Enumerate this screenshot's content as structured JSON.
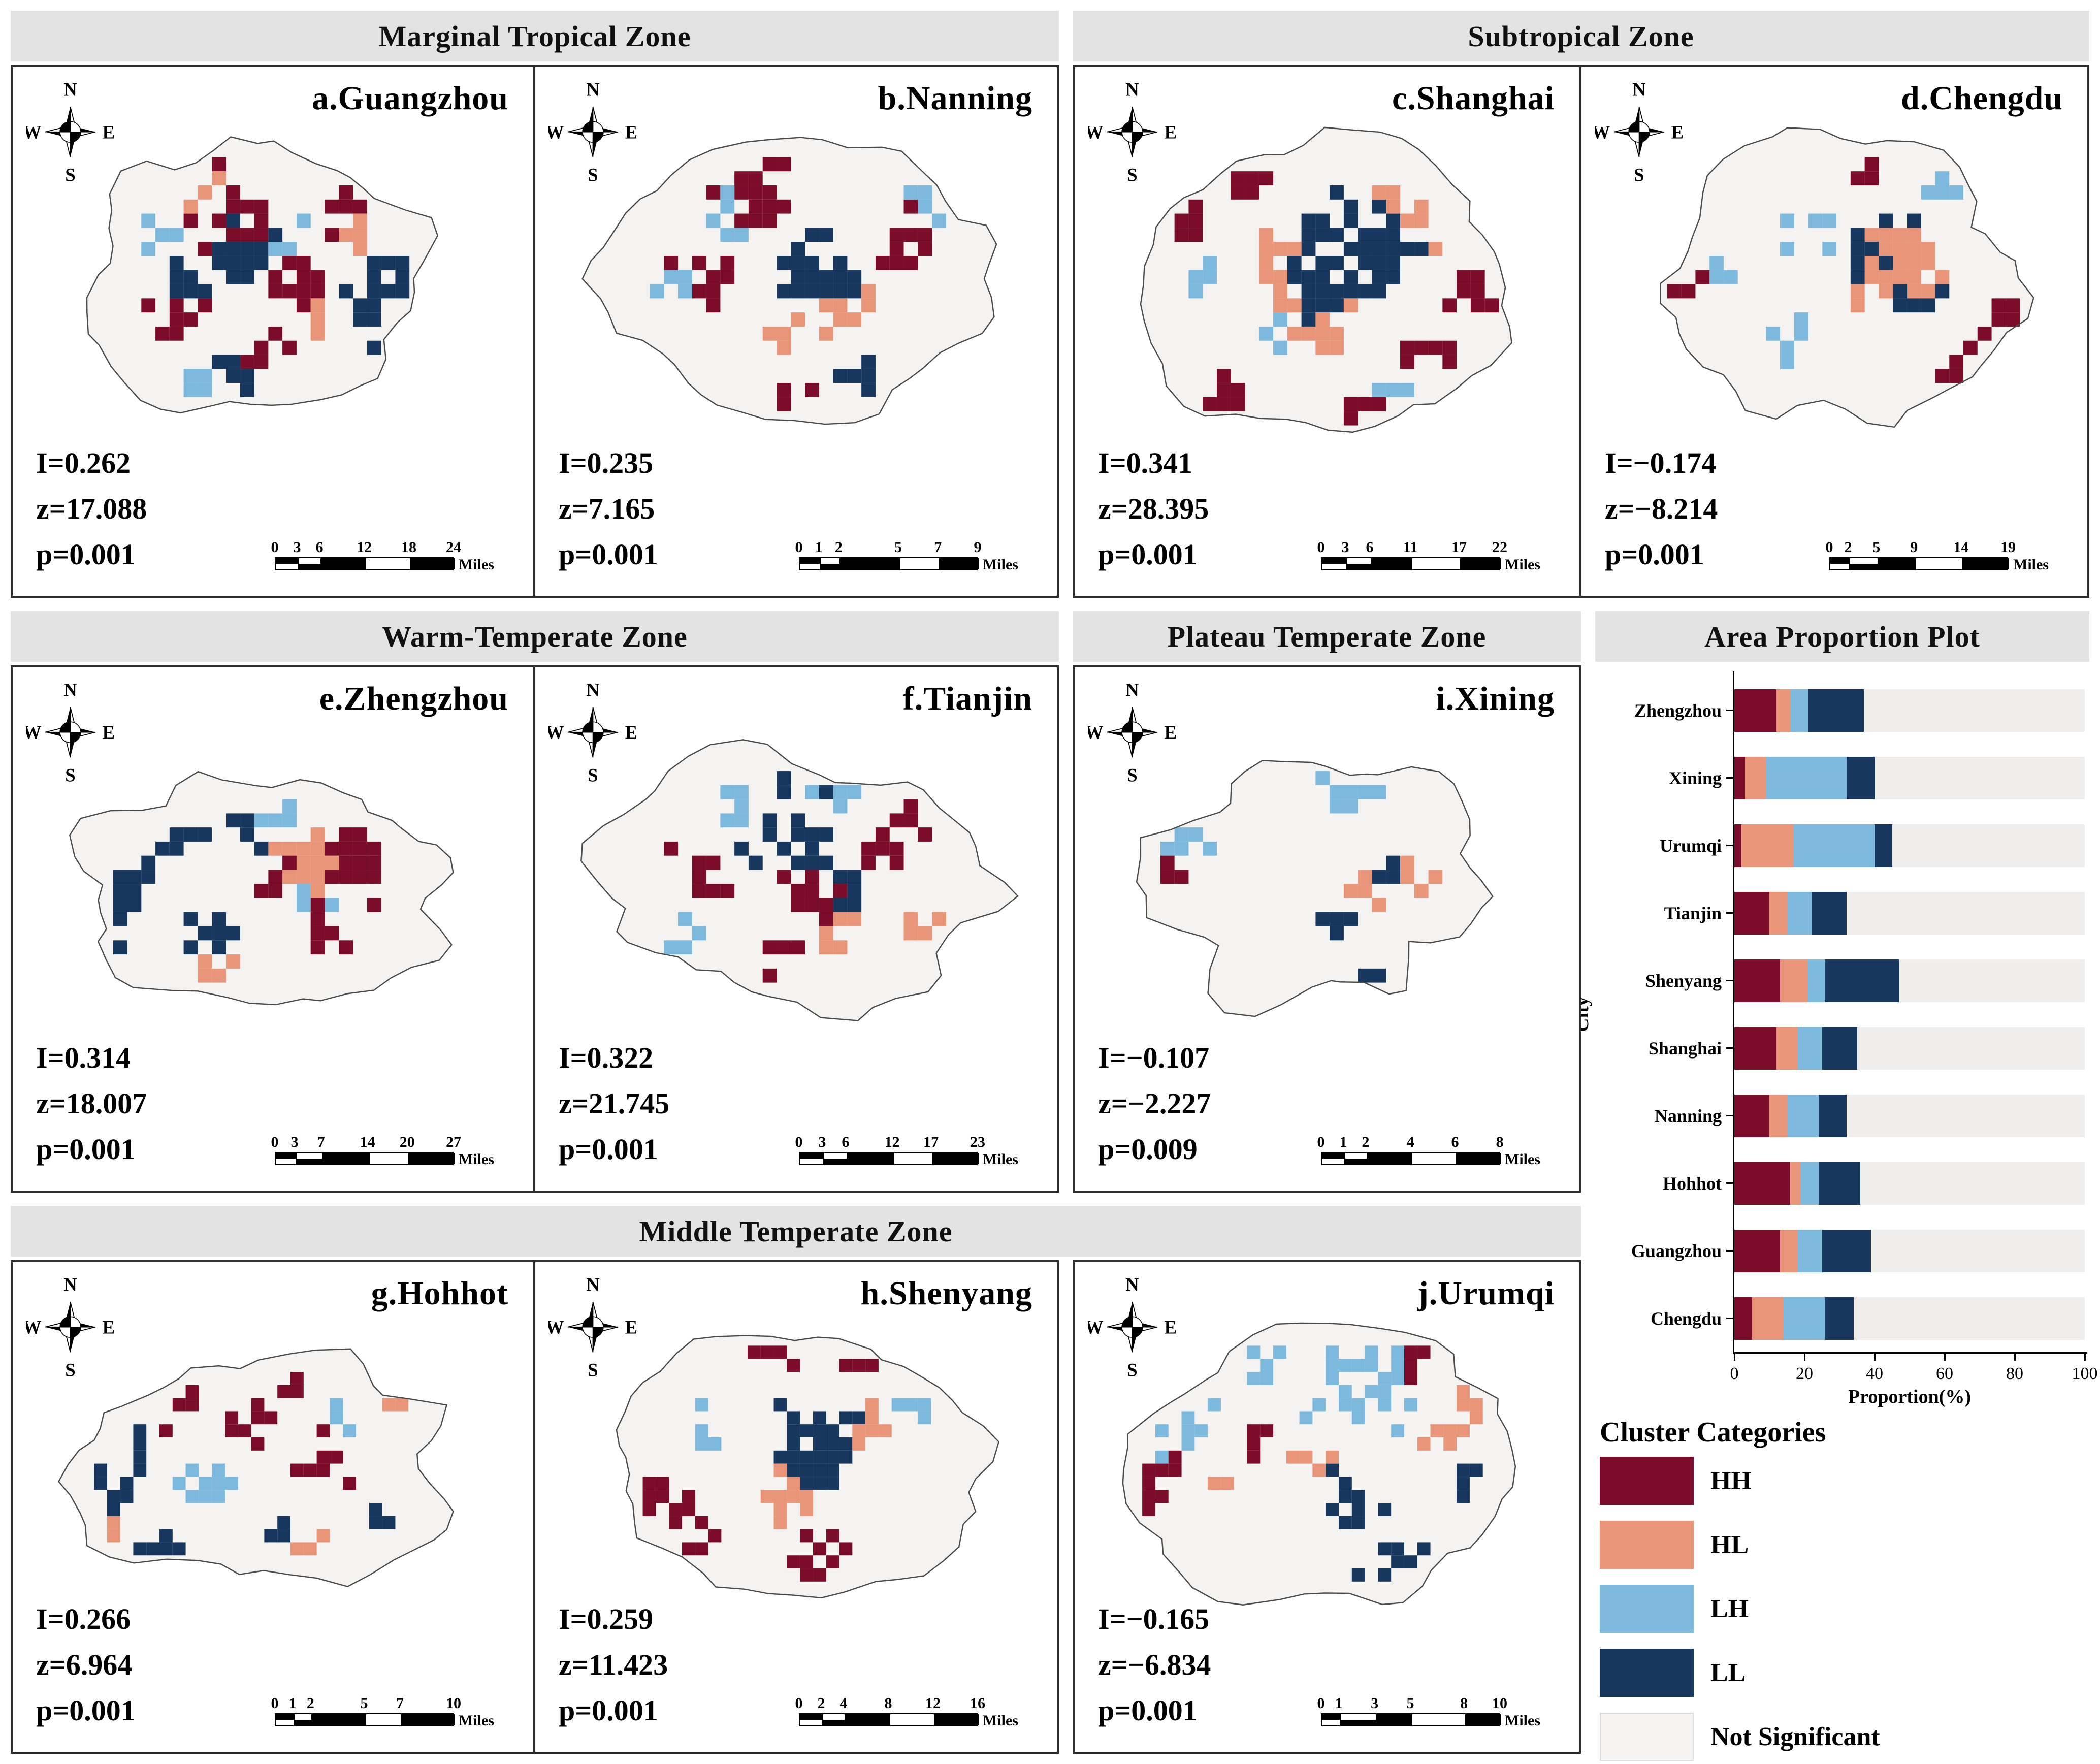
{
  "colors": {
    "HH": "#7c0d2a",
    "HL": "#e8957a",
    "LH": "#7db8dd",
    "LL": "#17375e",
    "not_significant": "#f5f4f2",
    "header_bg": "#e3e3e3",
    "map_fill": "#f4f3f1",
    "map_stroke": "#4c4c4c"
  },
  "compass": {
    "n": "N",
    "e": "E",
    "s": "S",
    "w": "W"
  },
  "zone_headers": [
    {
      "id": "marginal-tropical",
      "label": "Marginal Tropical Zone"
    },
    {
      "id": "subtropical",
      "label": "Subtropical Zone"
    },
    {
      "id": "warm-temperate",
      "label": "Warm-Temperate Zone"
    },
    {
      "id": "plateau-temperate",
      "label": "Plateau Temperate Zone"
    },
    {
      "id": "area-proportion",
      "label": "Area Proportion Plot"
    },
    {
      "id": "middle-temperate",
      "label": "Middle Temperate Zone"
    }
  ],
  "panels": [
    {
      "id": "guangzhou",
      "title": "a.Guangzhou",
      "stats": [
        "I=0.262",
        "z=17.088",
        "p=0.001"
      ],
      "scale_ticks": [
        0,
        3,
        6,
        12,
        18,
        24
      ],
      "scale_unit": "Miles"
    },
    {
      "id": "nanning",
      "title": "b.Nanning",
      "stats": [
        "I=0.235",
        "z=7.165",
        "p=0.001"
      ],
      "scale_ticks": [
        0,
        1,
        2,
        5,
        7,
        9
      ],
      "scale_unit": "Miles"
    },
    {
      "id": "shanghai",
      "title": "c.Shanghai",
      "stats": [
        "I=0.341",
        "z=28.395",
        "p=0.001"
      ],
      "scale_ticks": [
        0,
        3,
        6,
        11,
        17,
        22
      ],
      "scale_unit": "Miles"
    },
    {
      "id": "chengdu",
      "title": "d.Chengdu",
      "stats": [
        "I=−0.174",
        "z=−8.214",
        "p=0.001"
      ],
      "scale_ticks": [
        0,
        2,
        5,
        9,
        14,
        19
      ],
      "scale_unit": "Miles"
    },
    {
      "id": "zhengzhou",
      "title": "e.Zhengzhou",
      "stats": [
        "I=0.314",
        "z=18.007",
        "p=0.001"
      ],
      "scale_ticks": [
        0,
        3,
        7,
        14,
        20,
        27
      ],
      "scale_unit": "Miles"
    },
    {
      "id": "tianjin",
      "title": "f.Tianjin",
      "stats": [
        "I=0.322",
        "z=21.745",
        "p=0.001"
      ],
      "scale_ticks": [
        0,
        3,
        6,
        12,
        17,
        23
      ],
      "scale_unit": "Miles"
    },
    {
      "id": "xining",
      "title": "i.Xining",
      "stats": [
        "I=−0.107",
        "z=−2.227",
        "p=0.009"
      ],
      "scale_ticks": [
        0,
        1,
        2,
        4,
        6,
        8
      ],
      "scale_unit": "Miles"
    },
    {
      "id": "hohhot",
      "title": "g.Hohhot",
      "stats": [
        "I=0.266",
        "z=6.964",
        "p=0.001"
      ],
      "scale_ticks": [
        0,
        1,
        2,
        5,
        7,
        10
      ],
      "scale_unit": "Miles"
    },
    {
      "id": "shenyang",
      "title": "h.Shenyang",
      "stats": [
        "I=0.259",
        "z=11.423",
        "p=0.001"
      ],
      "scale_ticks": [
        0,
        2,
        4,
        8,
        12,
        16
      ],
      "scale_unit": "Miles"
    },
    {
      "id": "urumqi",
      "title": "j.Urumqi",
      "stats": [
        "I=−0.165",
        "z=−6.834",
        "p=0.001"
      ],
      "scale_ticks": [
        0,
        1,
        3,
        5,
        8,
        10
      ],
      "scale_unit": "Miles"
    }
  ],
  "chart_data": {
    "type": "bar",
    "orientation": "horizontal",
    "stacked": true,
    "title": "Area Proportion Plot",
    "xlabel": "Proportion(%)",
    "ylabel": "City",
    "xlim": [
      0,
      100
    ],
    "xticks": [
      0,
      20,
      40,
      60,
      80,
      100
    ],
    "legend_position": "below",
    "grid": false,
    "categories": [
      "Zhengzhou",
      "Xining",
      "Urumqi",
      "Tianjin",
      "Shenyang",
      "Shanghai",
      "Nanning",
      "Hohhot",
      "Guangzhou",
      "Chengdu"
    ],
    "series": [
      {
        "name": "HH",
        "values": [
          12,
          3,
          2,
          10,
          13,
          12,
          10,
          16,
          13,
          5
        ]
      },
      {
        "name": "HL",
        "values": [
          4,
          6,
          15,
          5,
          8,
          6,
          5,
          3,
          5,
          9
        ]
      },
      {
        "name": "LH",
        "values": [
          5,
          23,
          23,
          7,
          5,
          7,
          9,
          5,
          7,
          12
        ]
      },
      {
        "name": "LL",
        "values": [
          16,
          8,
          5,
          10,
          21,
          10,
          8,
          12,
          14,
          8
        ]
      },
      {
        "name": "Not Significant",
        "values": [
          63,
          60,
          55,
          68,
          53,
          65,
          68,
          64,
          61,
          66
        ]
      }
    ]
  },
  "legend": {
    "title": "Cluster Categories",
    "items": [
      {
        "label": "HH",
        "color_key": "HH"
      },
      {
        "label": "HL",
        "color_key": "HL"
      },
      {
        "label": "LH",
        "color_key": "LH"
      },
      {
        "label": "LL",
        "color_key": "LL"
      },
      {
        "label": "Not Significant",
        "color_key": "not_significant"
      }
    ]
  }
}
